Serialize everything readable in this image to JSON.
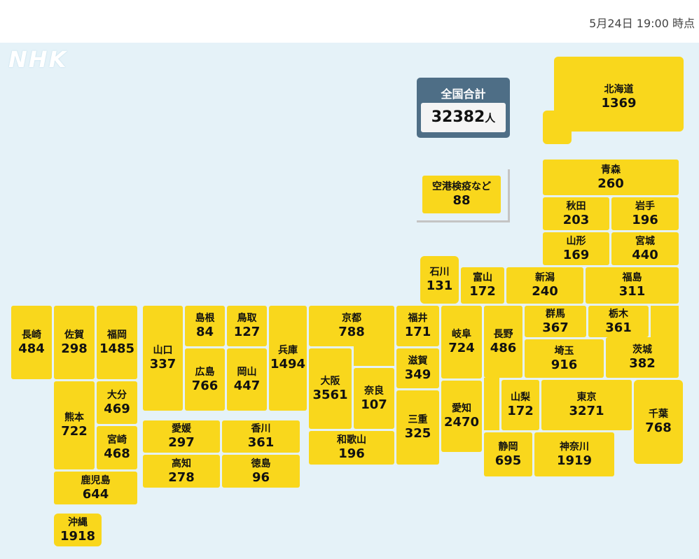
{
  "header": {
    "timestamp": "5月24日 19:00 時点"
  },
  "logo": {
    "text": "NHK"
  },
  "total": {
    "label": "全国合計",
    "value": "32382",
    "unit": "人"
  },
  "airport": {
    "name": "空港検疫など",
    "value": "88"
  },
  "prefectures": {
    "hokkaido": {
      "name": "北海道",
      "value": "1369"
    },
    "aomori": {
      "name": "青森",
      "value": "260"
    },
    "akita": {
      "name": "秋田",
      "value": "203"
    },
    "iwate": {
      "name": "岩手",
      "value": "196"
    },
    "yamagata": {
      "name": "山形",
      "value": "169"
    },
    "miyagi": {
      "name": "宮城",
      "value": "440"
    },
    "ishikawa": {
      "name": "石川",
      "value": "131"
    },
    "toyama": {
      "name": "富山",
      "value": "172"
    },
    "niigata": {
      "name": "新潟",
      "value": "240"
    },
    "fukushima": {
      "name": "福島",
      "value": "311"
    },
    "gunma": {
      "name": "群馬",
      "value": "367"
    },
    "tochigi": {
      "name": "栃木",
      "value": "361"
    },
    "saitama": {
      "name": "埼玉",
      "value": "916"
    },
    "ibaraki": {
      "name": "茨城",
      "value": "382"
    },
    "nagano": {
      "name": "長野",
      "value": "486"
    },
    "yamanashi": {
      "name": "山梨",
      "value": "172"
    },
    "tokyo": {
      "name": "東京",
      "value": "3271"
    },
    "chiba": {
      "name": "千葉",
      "value": "768"
    },
    "shizuoka": {
      "name": "静岡",
      "value": "695"
    },
    "kanagawa": {
      "name": "神奈川",
      "value": "1919"
    },
    "fukui": {
      "name": "福井",
      "value": "171"
    },
    "gifu": {
      "name": "岐阜",
      "value": "724"
    },
    "aichi": {
      "name": "愛知",
      "value": "2470"
    },
    "shiga": {
      "name": "滋賀",
      "value": "349"
    },
    "mie": {
      "name": "三重",
      "value": "325"
    },
    "kyoto": {
      "name": "京都",
      "value": "788"
    },
    "osaka": {
      "name": "大阪",
      "value": "3561"
    },
    "nara": {
      "name": "奈良",
      "value": "107"
    },
    "wakayama": {
      "name": "和歌山",
      "value": "196"
    },
    "hyogo": {
      "name": "兵庫",
      "value": "1494"
    },
    "tottori": {
      "name": "鳥取",
      "value": "127"
    },
    "shimane": {
      "name": "島根",
      "value": "84"
    },
    "okayama": {
      "name": "岡山",
      "value": "447"
    },
    "hiroshima": {
      "name": "広島",
      "value": "766"
    },
    "yamaguchi": {
      "name": "山口",
      "value": "337"
    },
    "kagawa": {
      "name": "香川",
      "value": "361"
    },
    "ehime": {
      "name": "愛媛",
      "value": "297"
    },
    "tokushima": {
      "name": "徳島",
      "value": "96"
    },
    "kochi": {
      "name": "高知",
      "value": "278"
    },
    "fukuoka": {
      "name": "福岡",
      "value": "1485"
    },
    "saga": {
      "name": "佐賀",
      "value": "298"
    },
    "nagasaki": {
      "name": "長崎",
      "value": "484"
    },
    "oita": {
      "name": "大分",
      "value": "469"
    },
    "kumamoto": {
      "name": "熊本",
      "value": "722"
    },
    "miyazaki": {
      "name": "宮崎",
      "value": "468"
    },
    "kagoshima": {
      "name": "鹿児島",
      "value": "644"
    },
    "okinawa": {
      "name": "沖縄",
      "value": "1918"
    }
  },
  "colors": {
    "tile": "#f9d71c",
    "background": "#e5f2f8",
    "total_panel": "#4e6e86"
  }
}
